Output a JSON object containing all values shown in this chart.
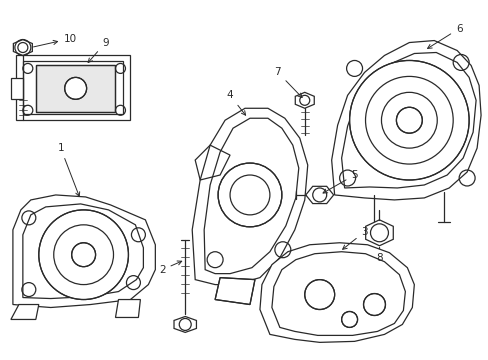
{
  "background_color": "#ffffff",
  "line_color": "#2a2a2a",
  "lw": 0.9,
  "fig_width": 4.89,
  "fig_height": 3.6,
  "dpi": 100,
  "font_size": 7.5,
  "xlim": [
    0,
    489
  ],
  "ylim": [
    0,
    360
  ]
}
